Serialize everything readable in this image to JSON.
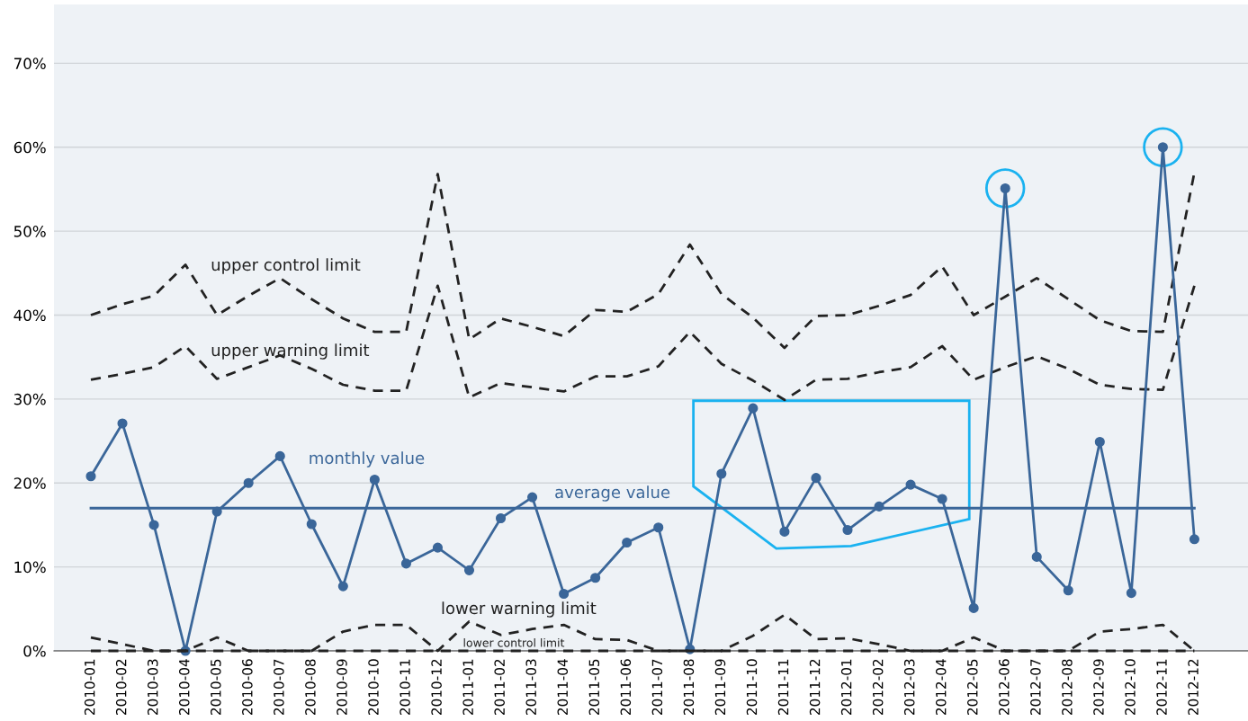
{
  "chart_data": {
    "type": "line",
    "categories": [
      "2010-01",
      "2010-02",
      "2010-03",
      "2010-04",
      "2010-05",
      "2010-06",
      "2010-07",
      "2010-08",
      "2010-09",
      "2010-10",
      "2010-11",
      "2010-12",
      "2011-01",
      "2011-02",
      "2011-03",
      "2011-04",
      "2011-05",
      "2011-06",
      "2011-07",
      "2011-08",
      "2011-09",
      "2011-10",
      "2011-11",
      "2011-12",
      "2012-01",
      "2012-02",
      "2012-03",
      "2012-04",
      "2012-05",
      "2012-06",
      "2012-07",
      "2012-08",
      "2012-09",
      "2012-10",
      "2012-11",
      "2012-12"
    ],
    "series": [
      {
        "name": "upper control limit",
        "color": "#222222",
        "line_style": "dashed",
        "marker": "none",
        "values": [
          40.0,
          41.3,
          42.3,
          46.0,
          40.0,
          42.3,
          44.4,
          41.9,
          39.6,
          38.0,
          38.0,
          56.8,
          37.1,
          39.6,
          38.6,
          37.5,
          40.6,
          40.4,
          42.5,
          48.4,
          42.5,
          39.7,
          36.1,
          39.9,
          40.0,
          41.1,
          42.4,
          45.8,
          40.0,
          42.2,
          44.4,
          41.9,
          39.4,
          38.1,
          38.0,
          57.0
        ]
      },
      {
        "name": "upper warning limit",
        "color": "#222222",
        "line_style": "dashed",
        "marker": "none",
        "values": [
          32.3,
          33.0,
          33.8,
          36.3,
          32.4,
          33.8,
          35.2,
          33.6,
          31.7,
          31.0,
          31.0,
          43.5,
          30.2,
          31.9,
          31.4,
          30.9,
          32.7,
          32.7,
          33.9,
          38.0,
          34.2,
          32.2,
          29.9,
          32.3,
          32.4,
          33.2,
          33.8,
          36.3,
          32.3,
          33.8,
          35.1,
          33.6,
          31.7,
          31.2,
          31.1,
          43.5
        ]
      },
      {
        "name": "monthly value",
        "color": "#3a6699",
        "line_style": "solid",
        "marker": "circle",
        "values": [
          20.8,
          27.1,
          15.0,
          0,
          16.6,
          20.0,
          23.2,
          15.1,
          7.7,
          20.4,
          10.4,
          12.3,
          9.6,
          15.8,
          18.3,
          6.8,
          8.7,
          12.9,
          14.7,
          0.2,
          21.1,
          28.9,
          14.2,
          20.6,
          14.4,
          17.2,
          19.8,
          18.1,
          5.1,
          55.1,
          11.2,
          7.2,
          24.9,
          6.9,
          60.0,
          13.3
        ]
      },
      {
        "name": "average value",
        "color": "#3a6699",
        "line_style": "solid",
        "marker": "none",
        "values": [
          17,
          17,
          17,
          17,
          17,
          17,
          17,
          17,
          17,
          17,
          17,
          17,
          17,
          17,
          17,
          17,
          17,
          17,
          17,
          17,
          17,
          17,
          17,
          17,
          17,
          17,
          17,
          17,
          17,
          17,
          17,
          17,
          17,
          17,
          17,
          17
        ]
      },
      {
        "name": "lower warning limit",
        "color": "#222222",
        "line_style": "dashed",
        "marker": "none",
        "values": [
          1.6,
          0.8,
          0,
          0,
          1.6,
          0,
          0,
          0,
          2.3,
          3.1,
          3.1,
          0,
          3.5,
          1.9,
          2.6,
          3.1,
          1.4,
          1.3,
          0,
          0,
          0,
          1.8,
          4.3,
          1.4,
          1.5,
          0.8,
          0,
          0,
          1.6,
          0,
          0,
          0,
          2.3,
          2.6,
          3.1,
          0
        ]
      },
      {
        "name": "lower control limit",
        "color": "#222222",
        "line_style": "dashed",
        "marker": "none",
        "values": [
          0,
          0,
          0,
          0,
          0,
          0,
          0,
          0,
          0,
          0,
          0,
          0,
          0,
          0,
          0,
          0,
          0,
          0,
          0,
          0,
          0,
          0,
          0,
          0,
          0,
          0,
          0,
          0,
          0,
          0,
          0,
          0,
          0,
          0,
          0,
          0
        ]
      }
    ],
    "ylim": [
      0,
      77
    ],
    "yticks": [
      {
        "value": 0,
        "label": "0%"
      },
      {
        "value": 10,
        "label": "10%"
      },
      {
        "value": 20,
        "label": "20%"
      },
      {
        "value": 30,
        "label": "30%"
      },
      {
        "value": 40,
        "label": "40%"
      },
      {
        "value": 50,
        "label": "50%"
      },
      {
        "value": 60,
        "label": "60%"
      },
      {
        "value": 70,
        "label": "70%"
      }
    ],
    "grid": "y",
    "legend": false
  }
}
